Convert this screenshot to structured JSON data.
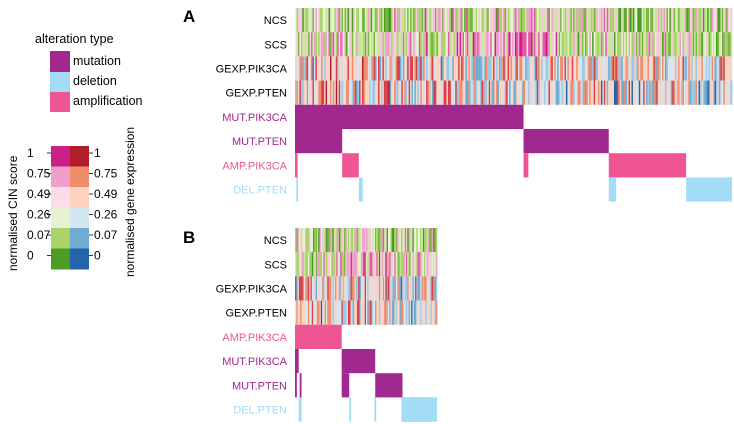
{
  "legend": {
    "title": "alteration type",
    "items": [
      {
        "label": "mutation",
        "color": "#a0288f"
      },
      {
        "label": "deletion",
        "color": "#a4dbf5"
      },
      {
        "label": "amplification",
        "color": "#ee5592"
      }
    ]
  },
  "colorbars": {
    "cin": {
      "label": "normalised CIN score",
      "colors": [
        "#cc1f87",
        "#ee9fca",
        "#fadde9",
        "#e6f3d2",
        "#a8d46a",
        "#4d9a26"
      ]
    },
    "gexp": {
      "label": "normalised gene expression",
      "colors": [
        "#b11d2b",
        "#f28d6c",
        "#fbd3c0",
        "#d4e6f0",
        "#6faccf",
        "#2464a8"
      ]
    },
    "ticks": [
      "1",
      "0.75",
      "0.49",
      "0.26",
      "0.07",
      "0"
    ]
  },
  "chart_data": [
    {
      "type": "heatmap",
      "panel": "A",
      "rows": [
        {
          "label": "NCS",
          "kind": "cin",
          "label_color": "#000000"
        },
        {
          "label": "SCS",
          "kind": "cin",
          "label_color": "#000000"
        },
        {
          "label": "GEXP.PIK3CA",
          "kind": "gexp",
          "label_color": "#000000"
        },
        {
          "label": "GEXP.PTEN",
          "kind": "gexp",
          "label_color": "#000000"
        },
        {
          "label": "MUT.PIK3CA",
          "kind": "alt",
          "label_color": "#a0288f",
          "color": "#a0288f",
          "segments": [
            [
              0,
              0.523
            ]
          ]
        },
        {
          "label": "MUT.PTEN",
          "kind": "alt",
          "label_color": "#a0288f",
          "color": "#a0288f",
          "segments": [
            [
              0,
              0.108
            ],
            [
              0.523,
              0.718
            ]
          ]
        },
        {
          "label": "AMP.PIK3CA",
          "kind": "alt",
          "label_color": "#ee5592",
          "color": "#ee5592",
          "segments": [
            [
              0,
              0.006
            ],
            [
              0.108,
              0.146
            ],
            [
              0.523,
              0.534
            ],
            [
              0.718,
              0.895
            ]
          ]
        },
        {
          "label": "DEL.PTEN",
          "kind": "alt",
          "label_color": "#a4dbf5",
          "color": "#a4dbf5",
          "segments": [
            [
              0.003,
              0.007
            ],
            [
              0.146,
              0.155
            ],
            [
              0.718,
              0.735
            ],
            [
              0.895,
              1.0
            ]
          ]
        }
      ]
    },
    {
      "type": "heatmap",
      "panel": "B",
      "rows": [
        {
          "label": "NCS",
          "kind": "cin",
          "label_color": "#000000"
        },
        {
          "label": "SCS",
          "kind": "cin",
          "label_color": "#000000"
        },
        {
          "label": "GEXP.PIK3CA",
          "kind": "gexp",
          "label_color": "#000000"
        },
        {
          "label": "GEXP.PTEN",
          "kind": "gexp",
          "label_color": "#000000"
        },
        {
          "label": "AMP.PIK3CA",
          "kind": "alt",
          "label_color": "#ee5592",
          "color": "#ee5592",
          "segments": [
            [
              0,
              0.329
            ]
          ]
        },
        {
          "label": "MUT.PIK3CA",
          "kind": "alt",
          "label_color": "#a0288f",
          "color": "#a0288f",
          "segments": [
            [
              0,
              0.026
            ],
            [
              0.329,
              0.565
            ]
          ]
        },
        {
          "label": "MUT.PTEN",
          "kind": "alt",
          "label_color": "#a0288f",
          "color": "#a0288f",
          "segments": [
            [
              0,
              0.013
            ],
            [
              0.033,
              0.046
            ],
            [
              0.329,
              0.382
            ],
            [
              0.565,
              0.757
            ]
          ]
        },
        {
          "label": "DEL.PTEN",
          "kind": "alt",
          "label_color": "#a4dbf5",
          "color": "#a4dbf5",
          "segments": [
            [
              0.026,
              0.046
            ],
            [
              0.382,
              0.395
            ],
            [
              0.559,
              0.572
            ],
            [
              0.757,
              0.763
            ],
            [
              0.757,
              0.763
            ],
            [
              0.75,
              0.96
            ],
            [
              0.75,
              0.96
            ],
            [
              0.75,
              0.96
            ],
            [
              0.75,
              0.96
            ],
            [
              0.757,
              0.96
            ],
            [
              0.757,
              0.96
            ],
            [
              0.757,
              1.0
            ]
          ]
        }
      ]
    }
  ]
}
